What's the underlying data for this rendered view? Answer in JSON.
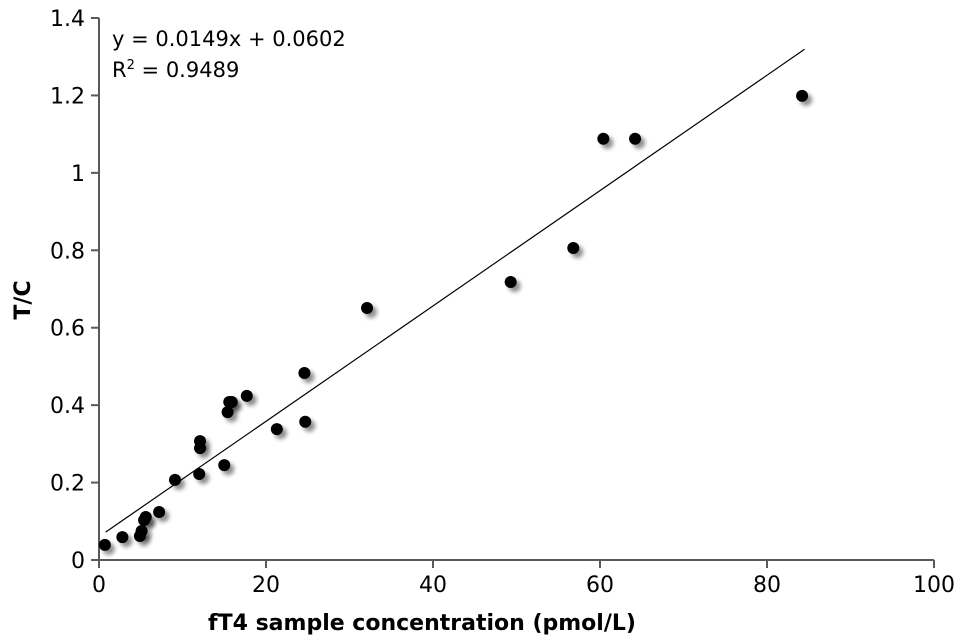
{
  "chart_data": {
    "type": "scatter",
    "title": "",
    "xlabel": "fT4 sample concentration (pmol/L)",
    "ylabel": "T/C",
    "xlim": [
      0,
      100
    ],
    "ylim": [
      0,
      1.4
    ],
    "xticks": [
      0,
      20,
      40,
      60,
      80,
      100
    ],
    "yticks": [
      0,
      0.2,
      0.4,
      0.6,
      0.8,
      1,
      1.2,
      1.4
    ],
    "xtick_labels": [
      "0",
      "20",
      "40",
      "60",
      "80",
      "100"
    ],
    "ytick_labels": [
      "0",
      "0.2",
      "0.4",
      "0.6",
      "0.8",
      "1",
      "1.2",
      "1.4"
    ],
    "grid": false,
    "marker_color": "#000000",
    "axis_color": "#595959",
    "points": [
      [
        0.7,
        0.039
      ],
      [
        2.8,
        0.059
      ],
      [
        4.9,
        0.062
      ],
      [
        5.1,
        0.075
      ],
      [
        5.4,
        0.103
      ],
      [
        5.6,
        0.111
      ],
      [
        7.2,
        0.124
      ],
      [
        9.1,
        0.207
      ],
      [
        12.0,
        0.222
      ],
      [
        12.1,
        0.289
      ],
      [
        12.1,
        0.307
      ],
      [
        15.0,
        0.245
      ],
      [
        15.4,
        0.382
      ],
      [
        15.6,
        0.408
      ],
      [
        15.9,
        0.408
      ],
      [
        17.7,
        0.424
      ],
      [
        21.3,
        0.338
      ],
      [
        24.6,
        0.483
      ],
      [
        24.7,
        0.357
      ],
      [
        32.1,
        0.651
      ],
      [
        49.3,
        0.718
      ],
      [
        56.8,
        0.806
      ],
      [
        60.4,
        1.088
      ],
      [
        64.2,
        1.088
      ],
      [
        84.2,
        1.199
      ]
    ],
    "trendline": {
      "slope": 0.0149,
      "intercept": 0.0602,
      "x_range": [
        0.8,
        84.5
      ],
      "equation_label": "y = 0.0149x + 0.0602",
      "r2_label_prefix": "R",
      "r2_label_sup": "2",
      "r2_label_value": " = 0.9489"
    }
  }
}
